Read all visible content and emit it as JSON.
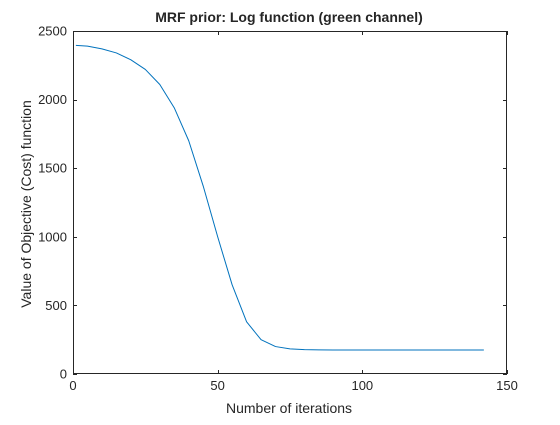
{
  "chart_data": {
    "type": "line",
    "title": "MRF prior: Log function (green channel)",
    "xlabel": "Number of iterations",
    "ylabel": "Value of Objective (Cost) function",
    "xlim": [
      0,
      150
    ],
    "ylim": [
      0,
      2500
    ],
    "xticks": [
      0,
      50,
      100,
      150
    ],
    "yticks": [
      0,
      500,
      1000,
      1500,
      2000,
      2500
    ],
    "grid": false,
    "box": true,
    "series": [
      {
        "color": "#0072BD",
        "x": [
          1,
          5,
          10,
          15,
          20,
          25,
          30,
          35,
          40,
          45,
          50,
          55,
          60,
          65,
          70,
          75,
          80,
          85,
          90,
          95,
          100,
          110,
          120,
          130,
          142
        ],
        "y": [
          2395,
          2390,
          2370,
          2340,
          2290,
          2220,
          2110,
          1940,
          1700,
          1370,
          1000,
          650,
          380,
          250,
          200,
          183,
          178,
          176,
          175,
          175,
          175,
          175,
          175,
          175,
          175
        ]
      }
    ]
  }
}
